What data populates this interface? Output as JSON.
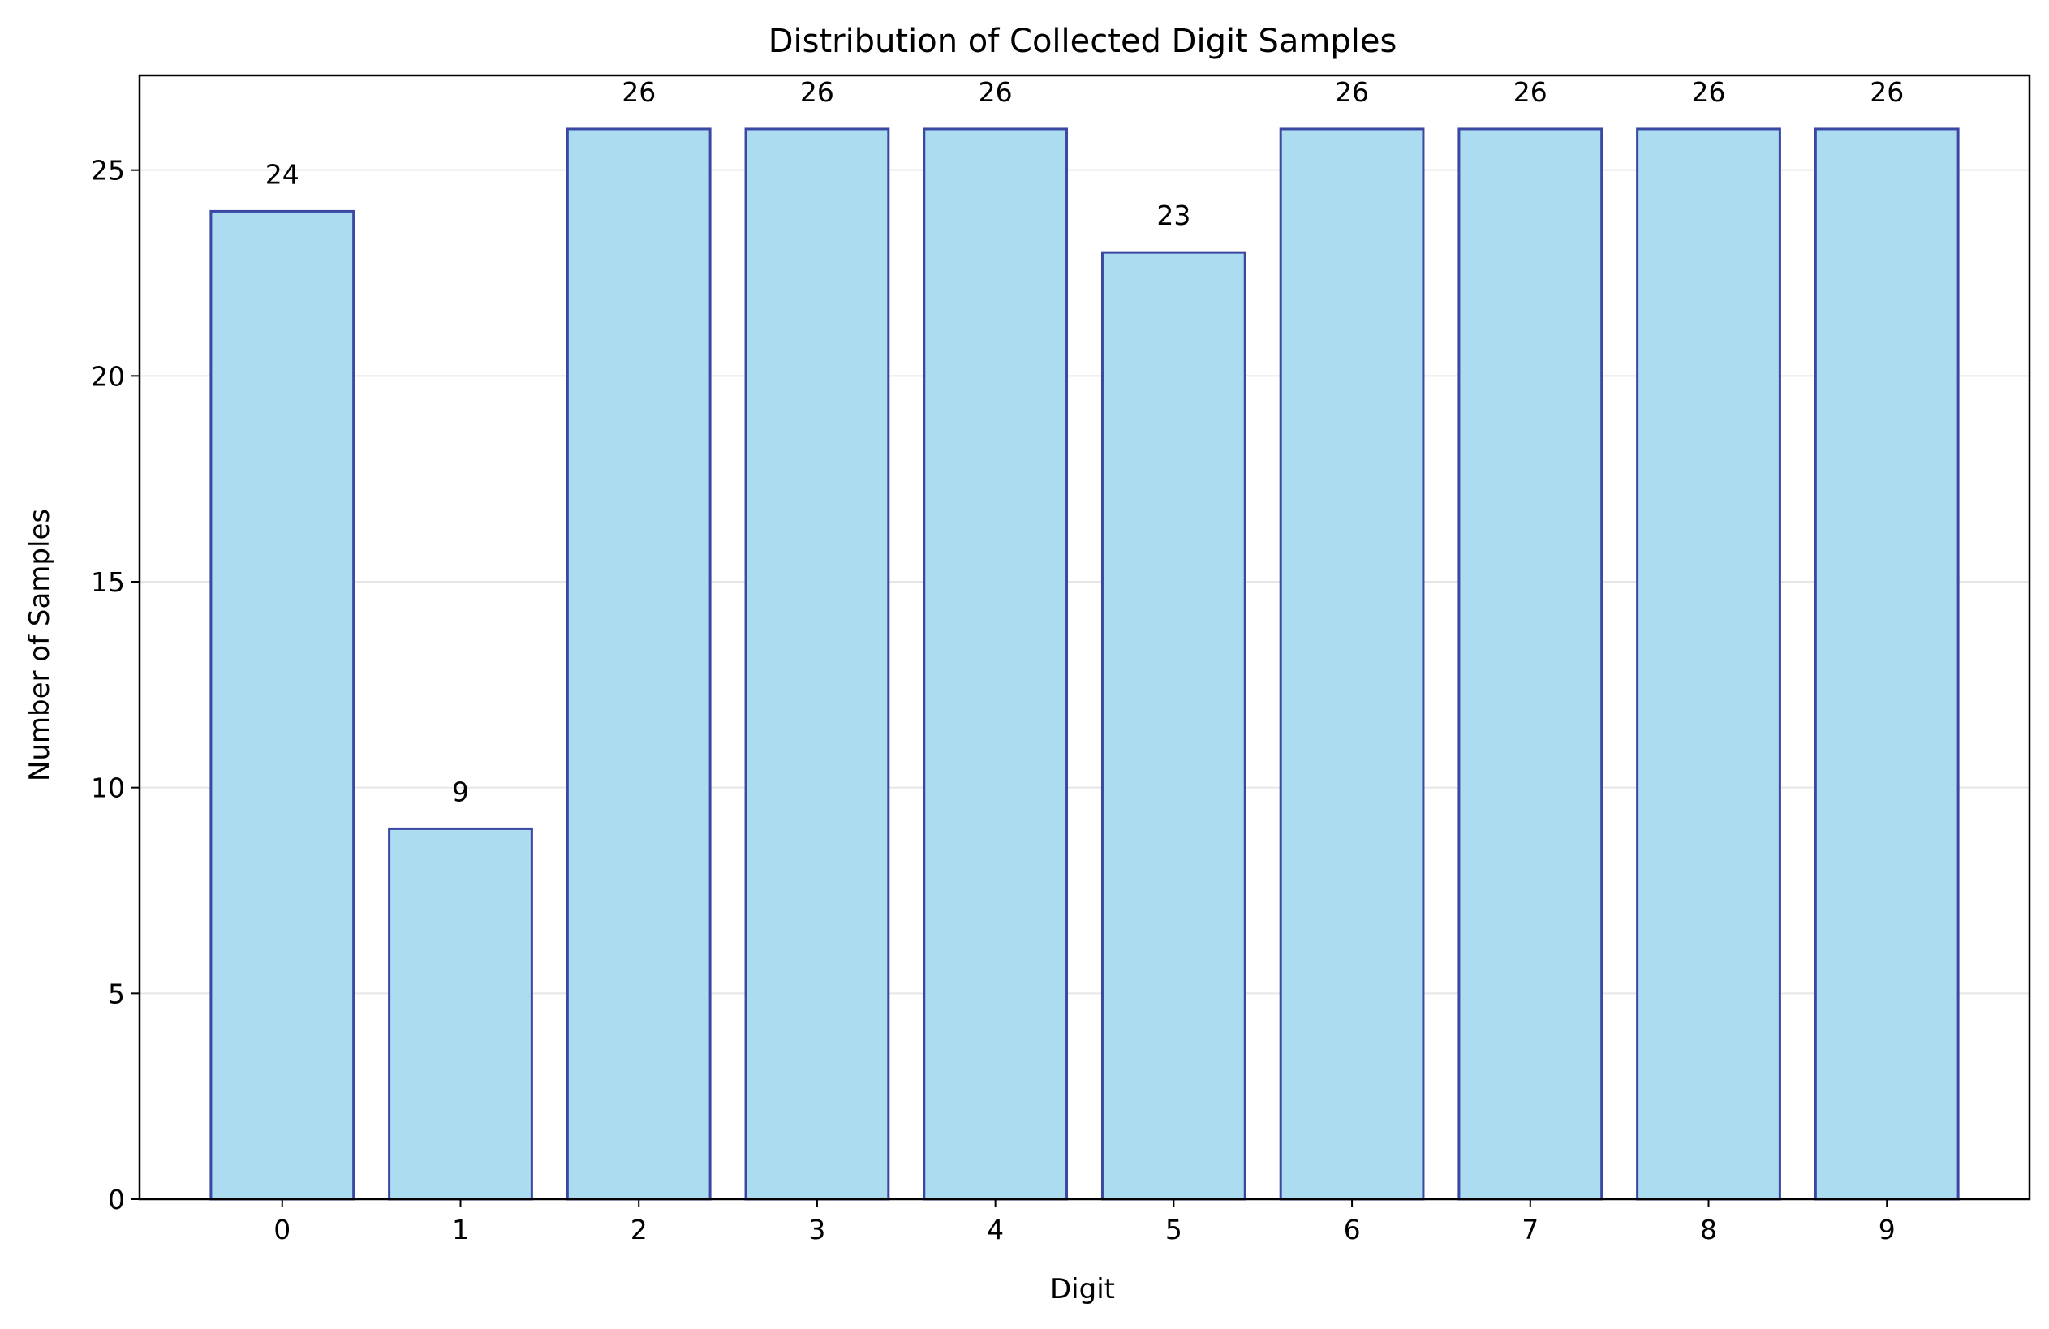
{
  "chart_data": {
    "type": "bar",
    "title": "Distribution of Collected Digit Samples",
    "xlabel": "Digit",
    "ylabel": "Number of Samples",
    "categories": [
      "0",
      "1",
      "2",
      "3",
      "4",
      "5",
      "6",
      "7",
      "8",
      "9"
    ],
    "values": [
      24,
      9,
      26,
      26,
      26,
      23,
      26,
      26,
      26,
      26
    ],
    "ylim": [
      0,
      27.3
    ],
    "yticks": [
      0,
      5,
      10,
      15,
      20,
      25
    ],
    "grid": "y",
    "legend": "none",
    "colors": {
      "bar_fill": "#abdcef",
      "bar_edge": "#3b48a3",
      "grid": "#e6e6e6"
    }
  }
}
